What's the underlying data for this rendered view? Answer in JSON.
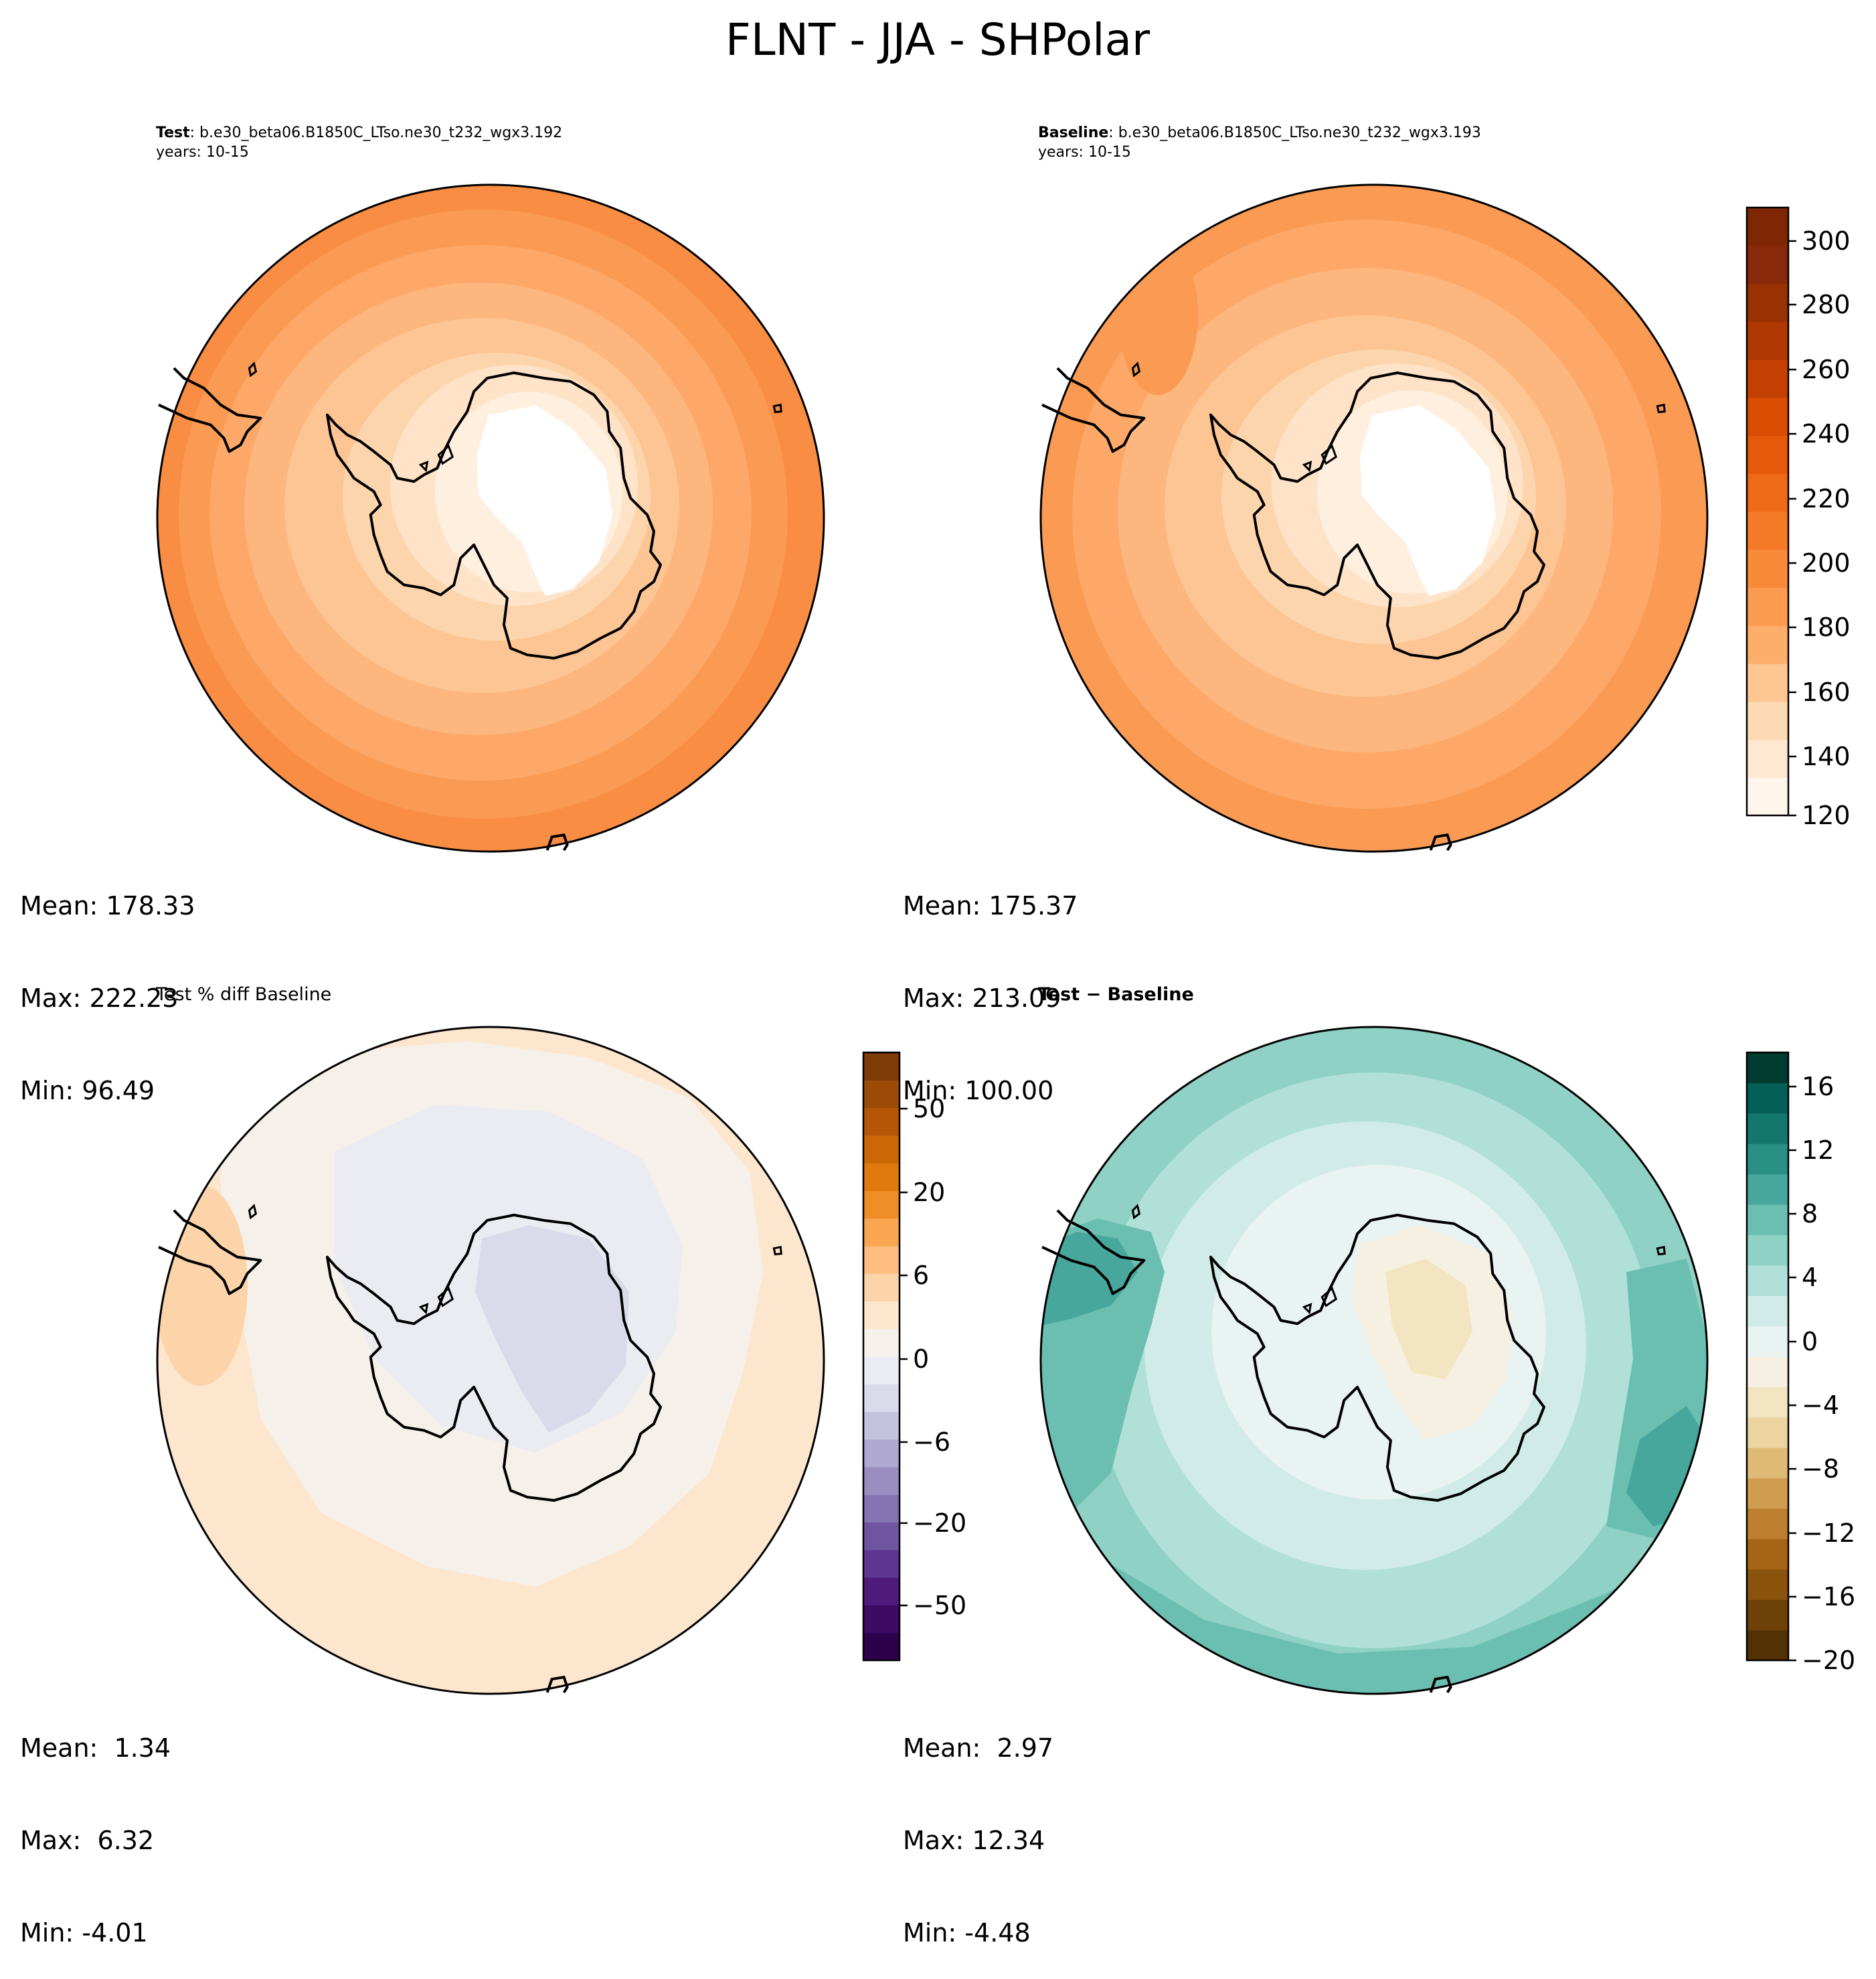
{
  "title": "FLNT - JJA - SHPolar",
  "panels": [
    {
      "id": "test",
      "label_bold": "Test",
      "label_rest": ": b.e30_beta06.B1850C_LTso.ne30_t232_wgx3.192",
      "years": "years: 10-15",
      "palette": "oranges",
      "stats": {
        "mean": "Mean: 178.33",
        "max": "Max: 222.23",
        "min": "Min: 96.49"
      }
    },
    {
      "id": "baseline",
      "label_bold": "Baseline",
      "label_rest": ": b.e30_beta06.B1850C_LTso.ne30_t232_wgx3.193",
      "years": "years: 10-15",
      "palette": "oranges",
      "stats": {
        "mean": "Mean: 175.37",
        "max": "Max: 213.09",
        "min": "Min: 100.00"
      }
    },
    {
      "id": "pctdiff",
      "label_plain": "Test % diff Baseline",
      "palette": "puor",
      "stats": {
        "mean": "Mean:  1.34",
        "max": "Max:  6.32",
        "min": "Min: -4.01"
      }
    },
    {
      "id": "diff",
      "label_bold": "Test − Baseline",
      "palette": "brbg",
      "stats": {
        "mean": "Mean:  2.97",
        "max": "Max: 12.34",
        "min": "Min: -4.48"
      }
    }
  ],
  "colorbars": [
    {
      "id": "cbar-main",
      "ticks": [
        "300",
        "280",
        "260",
        "240",
        "220",
        "200",
        "180",
        "160",
        "140",
        "120"
      ],
      "colors": [
        "#fff5eb",
        "#fee8d2",
        "#fdd9b4",
        "#fdc692",
        "#fdae6b",
        "#fd9b51",
        "#f98a3a",
        "#f57a27",
        "#ee6a17",
        "#e45a0a",
        "#d94d02",
        "#c44103",
        "#b03903",
        "#9a3103",
        "#87290a",
        "#7f2704"
      ]
    },
    {
      "id": "cbar-pct",
      "ticks": [
        "50",
        "20",
        "6",
        "0",
        "−6",
        "−20",
        "−50"
      ],
      "colors": [
        "#2d004b",
        "#3d0a64",
        "#4e1a7b",
        "#5e3590",
        "#6f55a0",
        "#8474b1",
        "#9a8ec1",
        "#afa8d1",
        "#c5c2df",
        "#dadaeb",
        "#ebebf2",
        "#f5f1ea",
        "#fde6ce",
        "#fdd4aa",
        "#fdbd7f",
        "#faa651",
        "#ef8d27",
        "#e0790e",
        "#cc6707",
        "#b55706",
        "#9b4a07",
        "#7f3b08"
      ]
    },
    {
      "id": "cbar-diff",
      "ticks": [
        "16",
        "12",
        "8",
        "4",
        "0",
        "−4",
        "−8",
        "−12",
        "−16",
        "−20"
      ],
      "colors": [
        "#543005",
        "#6e4109",
        "#8a530e",
        "#a66516",
        "#bd7e2f",
        "#cf9c50",
        "#dfbb76",
        "#ebd49f",
        "#f3e5c2",
        "#f5f0e2",
        "#e9f3f1",
        "#d1ece8",
        "#b1e0d8",
        "#8fd1c4",
        "#6bbfb1",
        "#47a79c",
        "#2a8f85",
        "#13776e",
        "#045f57",
        "#003c30"
      ]
    }
  ]
}
